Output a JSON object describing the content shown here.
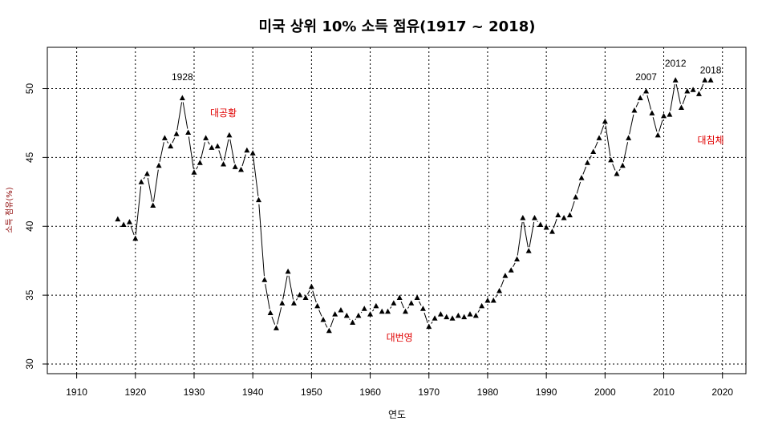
{
  "chart_data": {
    "type": "line",
    "title": "미국 상위 10% 소득 점유(1917 ~ 2018)",
    "xlabel": "연도",
    "ylabel": "소득 점유(%)",
    "xlim": [
      1905,
      2024
    ],
    "ylim": [
      29.3,
      53
    ],
    "xticks": [
      1910,
      1920,
      1930,
      1940,
      1950,
      1960,
      1970,
      1980,
      1990,
      2000,
      2010,
      2020
    ],
    "yticks": [
      30,
      35,
      40,
      45,
      50
    ],
    "grid": true,
    "marker": "triangle",
    "series": [
      {
        "x": [
          1917,
          1918,
          1919,
          1920,
          1921,
          1922,
          1923,
          1924,
          1925,
          1926,
          1927,
          1928,
          1929,
          1930,
          1931,
          1932,
          1933,
          1934,
          1935,
          1936,
          1937,
          1938,
          1939,
          1940,
          1941,
          1942,
          1943,
          1944,
          1945,
          1946,
          1947,
          1948,
          1949,
          1950,
          1951,
          1952,
          1953,
          1954,
          1955,
          1956,
          1957,
          1958,
          1959,
          1960,
          1961,
          1962,
          1963,
          1964,
          1965,
          1966,
          1967,
          1968,
          1969,
          1970,
          1971,
          1972,
          1973,
          1974,
          1975,
          1976,
          1977,
          1978,
          1979,
          1980,
          1981,
          1982,
          1983,
          1984,
          1985,
          1986,
          1987,
          1988,
          1989,
          1990,
          1991,
          1992,
          1993,
          1994,
          1995,
          1996,
          1997,
          1998,
          1999,
          2000,
          2001,
          2002,
          2003,
          2004,
          2005,
          2006,
          2007,
          2008,
          2009,
          2010,
          2011,
          2012,
          2013,
          2014,
          2015,
          2016,
          2017,
          2018
        ],
        "y": [
          40.5,
          40.1,
          40.3,
          39.1,
          43.2,
          43.8,
          41.5,
          44.4,
          46.4,
          45.8,
          46.7,
          49.3,
          46.8,
          43.9,
          44.6,
          46.4,
          45.7,
          45.8,
          44.5,
          46.6,
          44.3,
          44.1,
          45.5,
          45.3,
          41.9,
          36.1,
          33.7,
          32.6,
          34.4,
          36.7,
          34.4,
          35.0,
          34.8,
          35.6,
          34.2,
          33.2,
          32.4,
          33.6,
          33.9,
          33.5,
          33.0,
          33.5,
          34.0,
          33.6,
          34.2,
          33.8,
          33.8,
          34.4,
          34.8,
          33.8,
          34.4,
          34.8,
          34.0,
          32.7,
          33.3,
          33.6,
          33.4,
          33.3,
          33.5,
          33.4,
          33.6,
          33.5,
          34.2,
          34.6,
          34.6,
          35.3,
          36.4,
          36.8,
          37.6,
          40.6,
          38.2,
          40.6,
          40.1,
          39.9,
          39.6,
          40.8,
          40.6,
          40.8,
          42.1,
          43.5,
          44.6,
          45.4,
          46.4,
          47.6,
          44.8,
          43.8,
          44.4,
          46.4,
          48.4,
          49.3,
          49.8,
          48.2,
          46.6,
          48.0,
          48.1,
          50.6,
          48.6,
          49.8,
          49.9,
          49.6,
          50.6,
          50.6
        ]
      }
    ],
    "annotations": [
      {
        "text": "1928",
        "x": 1928,
        "y": 50.6,
        "color": "#000000"
      },
      {
        "text": "2007",
        "x": 2007,
        "y": 50.6,
        "color": "#000000"
      },
      {
        "text": "2012",
        "x": 2012,
        "y": 51.6,
        "color": "#000000"
      },
      {
        "text": "2018",
        "x": 2018,
        "y": 51.1,
        "color": "#000000"
      },
      {
        "text": "대공황",
        "x": 1935,
        "y": 48.0,
        "color": "#e00000"
      },
      {
        "text": "대번영",
        "x": 1965,
        "y": 31.7,
        "color": "#e00000"
      },
      {
        "text": "대침체",
        "x": 2018,
        "y": 46.0,
        "color": "#e00000"
      }
    ]
  }
}
